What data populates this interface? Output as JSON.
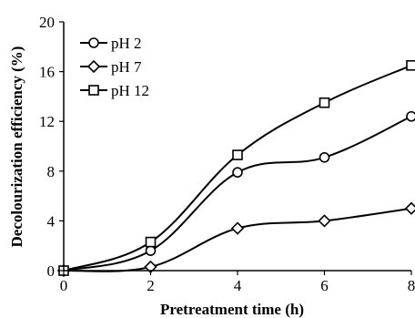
{
  "chart_data": {
    "type": "line",
    "xlabel": "Pretreatment time (h)",
    "ylabel": "Decolourization efficiency (%)",
    "xlim": [
      0,
      8
    ],
    "ylim": [
      0,
      20
    ],
    "xticks": [
      "0",
      "2",
      "4",
      "6",
      "8"
    ],
    "yticks": [
      "0",
      "4",
      "8",
      "12",
      "16",
      "20"
    ],
    "grid": false,
    "legend_position": "top-left",
    "x": [
      0,
      2,
      4,
      6,
      8
    ],
    "series": [
      {
        "name": "pH 2",
        "marker": "circle",
        "values": [
          0,
          1.6,
          7.9,
          9.1,
          12.4
        ]
      },
      {
        "name": "pH 7",
        "marker": "diamond",
        "values": [
          0,
          0.3,
          3.4,
          4.0,
          5.0
        ]
      },
      {
        "name": "pH 12",
        "marker": "square",
        "values": [
          0,
          2.3,
          9.3,
          13.5,
          16.5
        ]
      }
    ],
    "colors": {
      "line": "#000000",
      "marker_fill": "#ffffff"
    }
  }
}
